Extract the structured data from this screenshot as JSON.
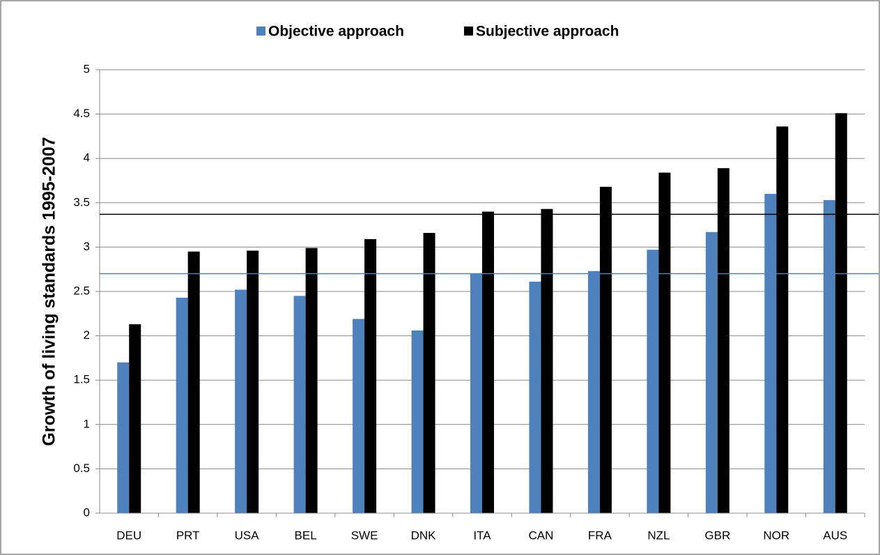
{
  "chart_data": {
    "type": "bar",
    "y_label": "Growth of living standards 1995-2007",
    "categories": [
      "DEU",
      "PRT",
      "USA",
      "BEL",
      "SWE",
      "DNK",
      "ITA",
      "CAN",
      "FRA",
      "NZL",
      "GBR",
      "NOR",
      "AUS"
    ],
    "series": [
      {
        "name": "Objective approach",
        "color": "#4f81bd",
        "values": [
          1.7,
          2.43,
          2.52,
          2.45,
          2.19,
          2.06,
          2.7,
          2.61,
          2.73,
          2.97,
          3.17,
          3.6,
          3.53
        ]
      },
      {
        "name": "Subjective approach",
        "color": "#000000",
        "values": [
          2.13,
          2.95,
          2.96,
          2.99,
          3.09,
          3.16,
          3.4,
          3.43,
          3.68,
          3.84,
          3.89,
          4.36,
          4.51
        ]
      }
    ],
    "reference_lines": [
      {
        "value": 2.7,
        "color": "#4f81bd"
      },
      {
        "value": 3.37,
        "color": "#000000"
      }
    ],
    "ylim": [
      0,
      5
    ],
    "yticks": [
      0,
      0.5,
      1,
      1.5,
      2,
      2.5,
      3,
      3.5,
      4,
      4.5,
      5
    ],
    "grid": true,
    "legend": "top"
  }
}
